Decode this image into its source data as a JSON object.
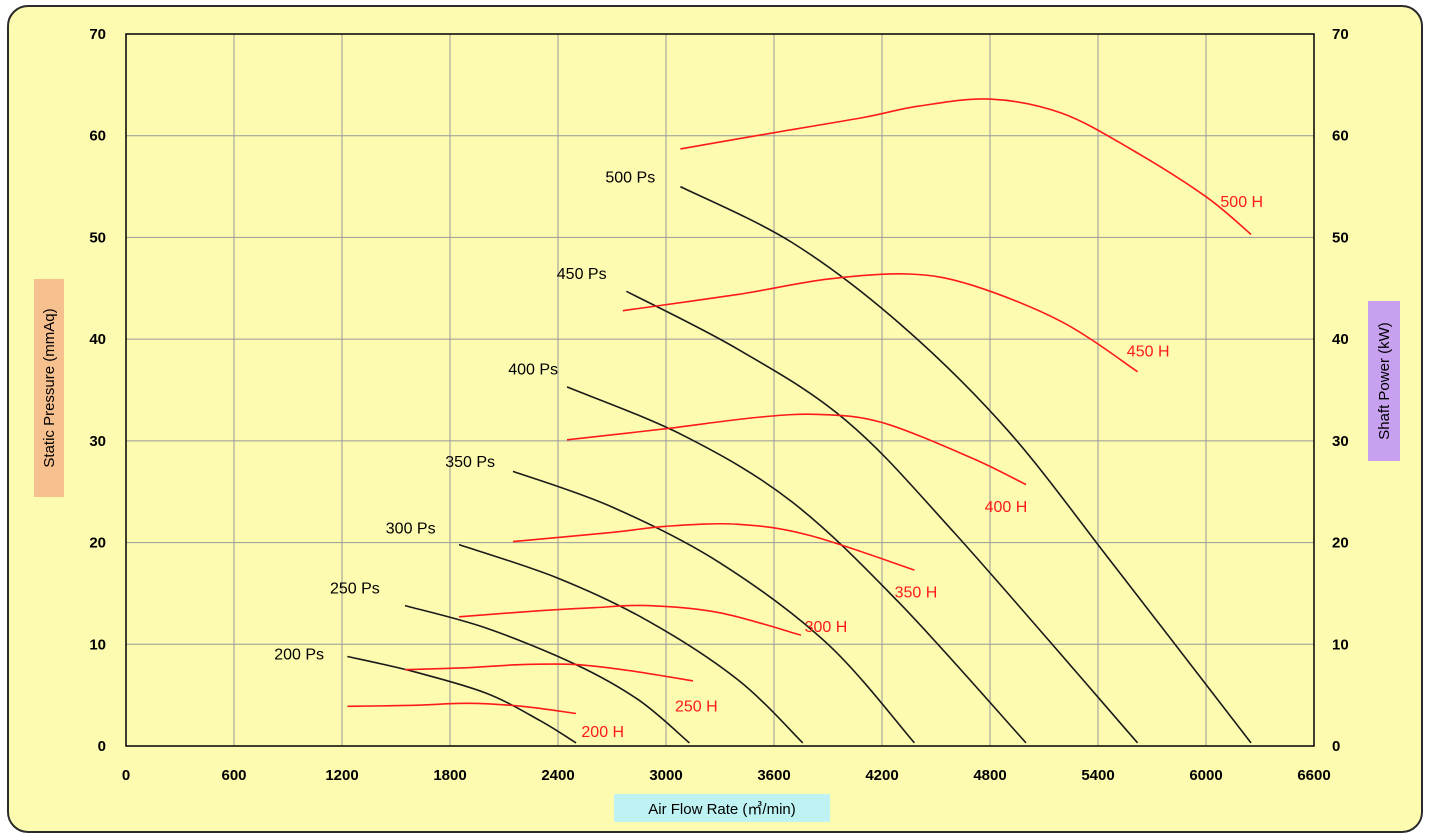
{
  "chart_data": {
    "type": "line",
    "title": "",
    "xlabel": "Air Flow Rate (㎥/min)",
    "ylabel_left": "Static Pressure (mmAq)",
    "ylabel_right": "Shaft Power (kW)",
    "xlim": [
      0,
      6600
    ],
    "ylim_left": [
      0,
      70
    ],
    "ylim_right": [
      0,
      70
    ],
    "x_ticks": [
      0,
      600,
      1200,
      1800,
      2400,
      3000,
      3600,
      4200,
      4800,
      5400,
      6000,
      6600
    ],
    "y_ticks_left": [
      0,
      10,
      20,
      30,
      40,
      50,
      60,
      70
    ],
    "y_ticks_right": [
      0,
      10,
      20,
      30,
      40,
      50,
      60,
      70
    ],
    "grid": true,
    "colors": {
      "background_panel": "#fdfbb0",
      "panel_border": "#2b2b2b",
      "grid": "#9a9a9a",
      "pressure_curves": "#1a1a1a",
      "power_curves": "#ff1a1a",
      "xlabel_bg": "#bff3f3",
      "ylabel_left_bg": "#f7c08f",
      "ylabel_right_bg": "#c8a0f0"
    },
    "pressure_series": [
      {
        "name": "200 Ps",
        "points": [
          [
            1230,
            8.8
          ],
          [
            1600,
            7.3
          ],
          [
            2000,
            5.2
          ],
          [
            2300,
            2.5
          ],
          [
            2500,
            0.3
          ]
        ]
      },
      {
        "name": "250 Ps",
        "points": [
          [
            1550,
            13.8
          ],
          [
            2000,
            11.6
          ],
          [
            2500,
            8.0
          ],
          [
            2850,
            4.5
          ],
          [
            3130,
            0.3
          ]
        ]
      },
      {
        "name": "300 Ps",
        "points": [
          [
            1850,
            19.8
          ],
          [
            2400,
            16.5
          ],
          [
            2900,
            12.3
          ],
          [
            3400,
            6.5
          ],
          [
            3760,
            0.3
          ]
        ]
      },
      {
        "name": "350 Ps",
        "points": [
          [
            2150,
            27.0
          ],
          [
            2700,
            23.5
          ],
          [
            3300,
            18.0
          ],
          [
            3900,
            10.0
          ],
          [
            4380,
            0.3
          ]
        ]
      },
      {
        "name": "400 Ps",
        "points": [
          [
            2450,
            35.3
          ],
          [
            3100,
            30.5
          ],
          [
            3700,
            24.0
          ],
          [
            4300,
            14.0
          ],
          [
            5000,
            0.3
          ]
        ]
      },
      {
        "name": "450 Ps",
        "points": [
          [
            2780,
            44.7
          ],
          [
            3400,
            39.0
          ],
          [
            4000,
            32.0
          ],
          [
            4600,
            21.0
          ],
          [
            5620,
            0.3
          ]
        ]
      },
      {
        "name": "500 Ps",
        "points": [
          [
            3080,
            55.0
          ],
          [
            3700,
            49.5
          ],
          [
            4300,
            41.5
          ],
          [
            4900,
            31.0
          ],
          [
            5500,
            17.5
          ],
          [
            6250,
            0.3
          ]
        ]
      }
    ],
    "power_series": [
      {
        "name": "200 H",
        "points": [
          [
            1230,
            3.9
          ],
          [
            1600,
            4.0
          ],
          [
            1900,
            4.2
          ],
          [
            2200,
            3.9
          ],
          [
            2500,
            3.2
          ]
        ]
      },
      {
        "name": "250 H",
        "points": [
          [
            1550,
            7.5
          ],
          [
            1900,
            7.7
          ],
          [
            2200,
            8.0
          ],
          [
            2500,
            8.0
          ],
          [
            2800,
            7.4
          ],
          [
            3150,
            6.4
          ]
        ]
      },
      {
        "name": "300 H",
        "points": [
          [
            1850,
            12.7
          ],
          [
            2300,
            13.3
          ],
          [
            2600,
            13.6
          ],
          [
            2900,
            13.8
          ],
          [
            3300,
            13.1
          ],
          [
            3750,
            10.9
          ]
        ]
      },
      {
        "name": "350 H",
        "points": [
          [
            2150,
            20.1
          ],
          [
            2700,
            21.0
          ],
          [
            3000,
            21.6
          ],
          [
            3400,
            21.8
          ],
          [
            3800,
            20.7
          ],
          [
            4380,
            17.3
          ]
        ]
      },
      {
        "name": "400 H",
        "points": [
          [
            2450,
            30.1
          ],
          [
            3000,
            31.2
          ],
          [
            3500,
            32.3
          ],
          [
            3850,
            32.6
          ],
          [
            4200,
            31.8
          ],
          [
            4700,
            28.3
          ],
          [
            5000,
            25.7
          ]
        ]
      },
      {
        "name": "450 H",
        "points": [
          [
            2760,
            42.8
          ],
          [
            3400,
            44.4
          ],
          [
            3900,
            45.9
          ],
          [
            4350,
            46.4
          ],
          [
            4700,
            45.3
          ],
          [
            5200,
            41.7
          ],
          [
            5620,
            36.8
          ]
        ]
      },
      {
        "name": "500 H",
        "points": [
          [
            3080,
            58.7
          ],
          [
            3600,
            60.3
          ],
          [
            4100,
            61.8
          ],
          [
            4400,
            62.9
          ],
          [
            4800,
            63.6
          ],
          [
            5200,
            62.2
          ],
          [
            5600,
            58.5
          ],
          [
            6000,
            54.0
          ],
          [
            6250,
            50.3
          ]
        ]
      }
    ],
    "pressure_label_anchors": [
      {
        "name": "200 Ps",
        "x": 1100,
        "y": 9.0
      },
      {
        "name": "250 Ps",
        "x": 1410,
        "y": 15.5
      },
      {
        "name": "300 Ps",
        "x": 1720,
        "y": 21.4
      },
      {
        "name": "350 Ps",
        "x": 2050,
        "y": 27.9
      },
      {
        "name": "400 Ps",
        "x": 2400,
        "y": 37.0
      },
      {
        "name": "450 Ps",
        "x": 2670,
        "y": 46.4
      },
      {
        "name": "500 Ps",
        "x": 2940,
        "y": 55.9
      }
    ],
    "power_label_anchors": [
      {
        "name": "200 H",
        "x": 2530,
        "y": 1.4
      },
      {
        "name": "250 H",
        "x": 3050,
        "y": 3.9
      },
      {
        "name": "300 H",
        "x": 3770,
        "y": 11.7
      },
      {
        "name": "350 H",
        "x": 4270,
        "y": 15.1
      },
      {
        "name": "400 H",
        "x": 4770,
        "y": 23.5
      },
      {
        "name": "450 H",
        "x": 5560,
        "y": 38.8
      },
      {
        "name": "500 H",
        "x": 6080,
        "y": 53.5
      }
    ]
  }
}
